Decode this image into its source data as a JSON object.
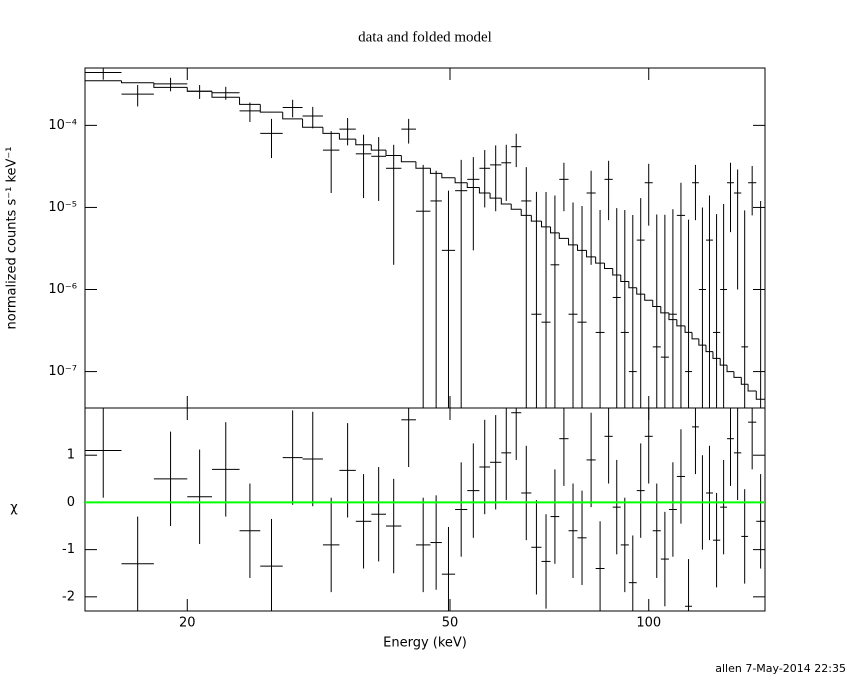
{
  "chart_data": [
    {
      "type": "spectrum",
      "title": "data and folded model",
      "ylabel": "normalized counts s⁻¹ keV⁻¹",
      "y_log": true,
      "ylim": [
        3.6e-08,
        0.0005
      ],
      "xlim": [
        14,
        150
      ],
      "x_log": true,
      "yticks": [
        {
          "value": 0.0001,
          "label": "10⁻⁴"
        },
        {
          "value": 1e-05,
          "label": "10⁻⁵"
        },
        {
          "value": 1e-06,
          "label": "10⁻⁶"
        },
        {
          "value": 1e-07,
          "label": "10⁻⁷"
        }
      ],
      "x_low": [
        14,
        15.9,
        17.8,
        20,
        21.8,
        24,
        25.8,
        27.9,
        29.9,
        32.1,
        34,
        36,
        38,
        40,
        42.2,
        44.4,
        46.7,
        48.6,
        50.9,
        53.1,
        55.4,
        57.5,
        59.8,
        61.9,
        64.1,
        66.4,
        68.8,
        71,
        73.2,
        75.6,
        78,
        80.5,
        83.1,
        85.7,
        88.2,
        90.7,
        93.3,
        95.9,
        98.6,
        101.4,
        104.3,
        107.3,
        110.3,
        113.5,
        116.3,
        119.1,
        122.1,
        125.1,
        128.3,
        131.4,
        134.6,
        138.1,
        141.4,
        145.5
      ],
      "x_high": [
        15.9,
        17.8,
        20,
        21.8,
        24,
        25.8,
        27.9,
        29.9,
        32.1,
        34,
        36,
        38,
        40,
        42.2,
        44.4,
        46.7,
        48.6,
        50.9,
        53.1,
        55.4,
        57.5,
        59.8,
        61.9,
        64.1,
        66.4,
        68.8,
        71,
        73.2,
        75.6,
        78,
        80.5,
        83.1,
        85.7,
        88.2,
        90.7,
        93.3,
        95.9,
        98.6,
        101.4,
        104.3,
        107.3,
        110.3,
        113.5,
        116.3,
        119.1,
        122.1,
        125.1,
        128.3,
        131.4,
        134.6,
        138.1,
        141.4,
        145.5,
        150
      ],
      "rate": [
        0.00044,
        0.00024,
        0.00032,
        0.00026,
        0.00025,
        0.00015,
        8e-05,
        0.000165,
        0.00013,
        5e-05,
        9e-05,
        4.5e-05,
        4.2e-05,
        3e-05,
        9e-05,
        9e-06,
        1.2e-05,
        3e-06,
        1.6e-05,
        2.2e-05,
        3e-05,
        3.3e-05,
        3.5e-05,
        5.5e-05,
        1.2e-05,
        5e-07,
        4e-07,
        2e-06,
        2.2e-05,
        5e-07,
        4e-07,
        1.5e-05,
        3e-07,
        2.2e-05,
        8e-07,
        3e-07,
        1e-07,
        4e-06,
        2e-05,
        2e-07,
        1.5e-07,
        5e-07,
        8e-06,
        1e-07,
        2e-05,
        1e-06,
        4e-06,
        3e-07,
        1e-06,
        2e-05,
        1.5e-05,
        2e-07,
        2e-05,
        1e-06
      ],
      "rate_err": [
        8e-05,
        7e-05,
        6e-05,
        5e-05,
        4.5e-05,
        4e-05,
        4e-05,
        4e-05,
        3.8e-05,
        3.5e-05,
        3.3e-05,
        3.2e-05,
        3e-05,
        2.8e-05,
        3e-05,
        2.4e-05,
        1.6e-05,
        1.3e-05,
        2.2e-05,
        1.9e-05,
        2e-05,
        2.4e-05,
        2.3e-05,
        2.4e-05,
        1.9e-05,
        1.5e-05,
        1.5e-05,
        1.2e-05,
        1.3e-05,
        1.1e-05,
        1e-05,
        1.3e-05,
        9e-06,
        1.5e-05,
        9e-06,
        9e-06,
        8e-06,
        9e-06,
        1.4e-05,
        8e-06,
        8e-06,
        9e-06,
        1.2e-05,
        7e-06,
        1.3e-05,
        9e-06,
        1e-05,
        8e-06,
        1e-05,
        1.5e-05,
        1.4e-05,
        9e-06,
        1.2e-05,
        1.1e-05
      ],
      "model": [
        0.00035,
        0.00033,
        0.00029,
        0.00026,
        0.00022,
        0.00018,
        0.000145,
        0.00012,
        9.5e-05,
        8e-05,
        6.8e-05,
        5.8e-05,
        5e-05,
        4.3e-05,
        3.6e-05,
        3e-05,
        2.6e-05,
        2.3e-05,
        2e-05,
        1.75e-05,
        1.5e-05,
        1.3e-05,
        1.1e-05,
        9.5e-06,
        8e-06,
        6.8e-06,
        5.8e-06,
        4.9e-06,
        4.2e-06,
        3.5e-06,
        3e-06,
        2.5e-06,
        2.1e-06,
        1.8e-06,
        1.5e-06,
        1.25e-06,
        1.05e-06,
        8.8e-07,
        7.4e-07,
        6.2e-07,
        5.2e-07,
        4.3e-07,
        3.6e-07,
        3e-07,
        2.5e-07,
        2.1e-07,
        1.75e-07,
        1.45e-07,
        1.2e-07,
        1e-07,
        8.5e-08,
        7e-08,
        5.8e-08,
        4.6e-08
      ]
    },
    {
      "type": "residuals",
      "ylabel": "χ",
      "xlabel": "Energy (keV)",
      "x_log": true,
      "xlim": [
        14,
        150
      ],
      "xticks": [
        20,
        50,
        100
      ],
      "ylim": [
        -2.3,
        2
      ],
      "yticks": [
        -2,
        -1,
        0,
        1
      ],
      "zero_line_color": "#00ff00",
      "chi": [
        1.1,
        -1.3,
        0.5,
        0.12,
        0.7,
        -0.6,
        -1.35,
        0.95,
        0.92,
        -0.9,
        0.68,
        -0.4,
        -0.25,
        -0.5,
        1.75,
        -0.9,
        -0.85,
        -1.52,
        -0.15,
        0.25,
        0.75,
        0.85,
        1.05,
        1.9,
        0.2,
        -0.95,
        -1.25,
        -0.3,
        1.35,
        -0.6,
        -0.75,
        0.9,
        -1.4,
        1.4,
        -0.1,
        -0.9,
        -1.7,
        0.25,
        1.4,
        -0.6,
        -1.2,
        -0.15,
        0.55,
        -2.2,
        1.6,
        0,
        0.2,
        -0.8,
        -0.1,
        1.35,
        1.05,
        -0.72,
        1.7,
        -0.4
      ],
      "chi_err": [
        1,
        1,
        1,
        1,
        1,
        1,
        1,
        1,
        1,
        1,
        1,
        1,
        1,
        1,
        1,
        1,
        1,
        1,
        1,
        1,
        1,
        1,
        1,
        1,
        1,
        1,
        1,
        1,
        1,
        1,
        1,
        1,
        1,
        1,
        1,
        1,
        1,
        1,
        1,
        1,
        1,
        1,
        1,
        1,
        1,
        1,
        1,
        1,
        1,
        1,
        1,
        1,
        1,
        1
      ]
    }
  ],
  "footer": "allen  7-May-2014 22:35"
}
